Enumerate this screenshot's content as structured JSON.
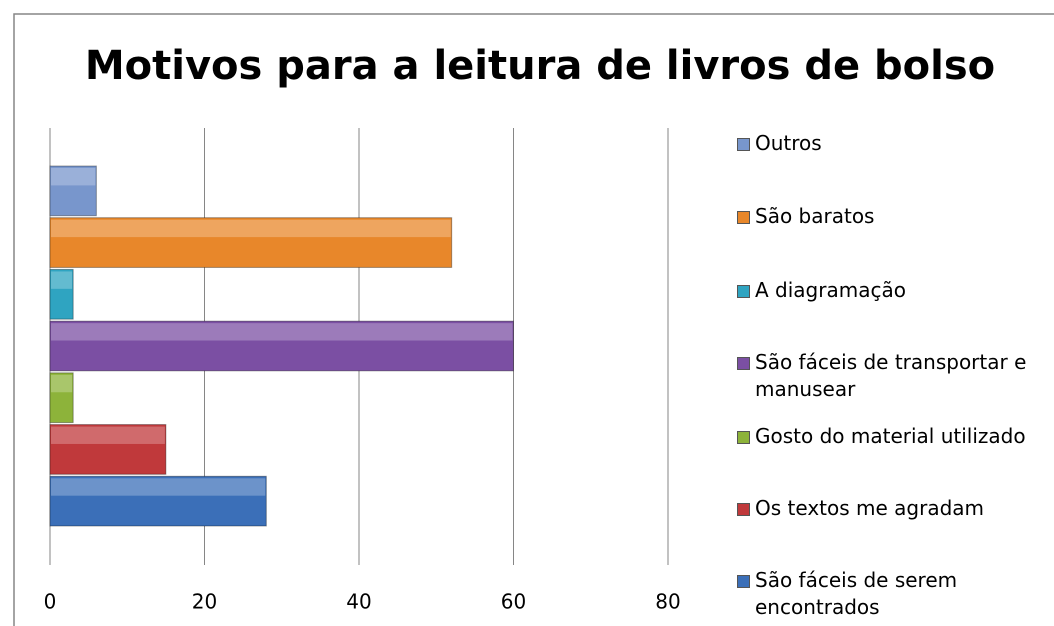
{
  "chart_data": {
    "type": "bar",
    "orientation": "horizontal",
    "title": "Motivos para a leitura de livros de bolso",
    "categories": [
      null
    ],
    "series": [
      {
        "name": "São fáceis de serem encontrados",
        "color": "#3b6fb8",
        "values": [
          28
        ]
      },
      {
        "name": "Os textos me agradam",
        "color": "#c0393b",
        "values": [
          15
        ]
      },
      {
        "name": "Gosto do material utilizado",
        "color": "#8db33a",
        "values": [
          3
        ]
      },
      {
        "name": "São fáceis de transportar e manusear",
        "color": "#7b4fa3",
        "values": [
          60
        ]
      },
      {
        "name": "A diagramação",
        "color": "#2fa4c1",
        "values": [
          3
        ]
      },
      {
        "name": "São baratos",
        "color": "#e8872a",
        "values": [
          52
        ]
      },
      {
        "name": "Outros",
        "color": "#7896cc",
        "values": [
          6
        ]
      }
    ],
    "xlim": [
      0,
      80
    ],
    "xticks": [
      0,
      20,
      40,
      60,
      80
    ],
    "grid": true,
    "legend": "right"
  }
}
